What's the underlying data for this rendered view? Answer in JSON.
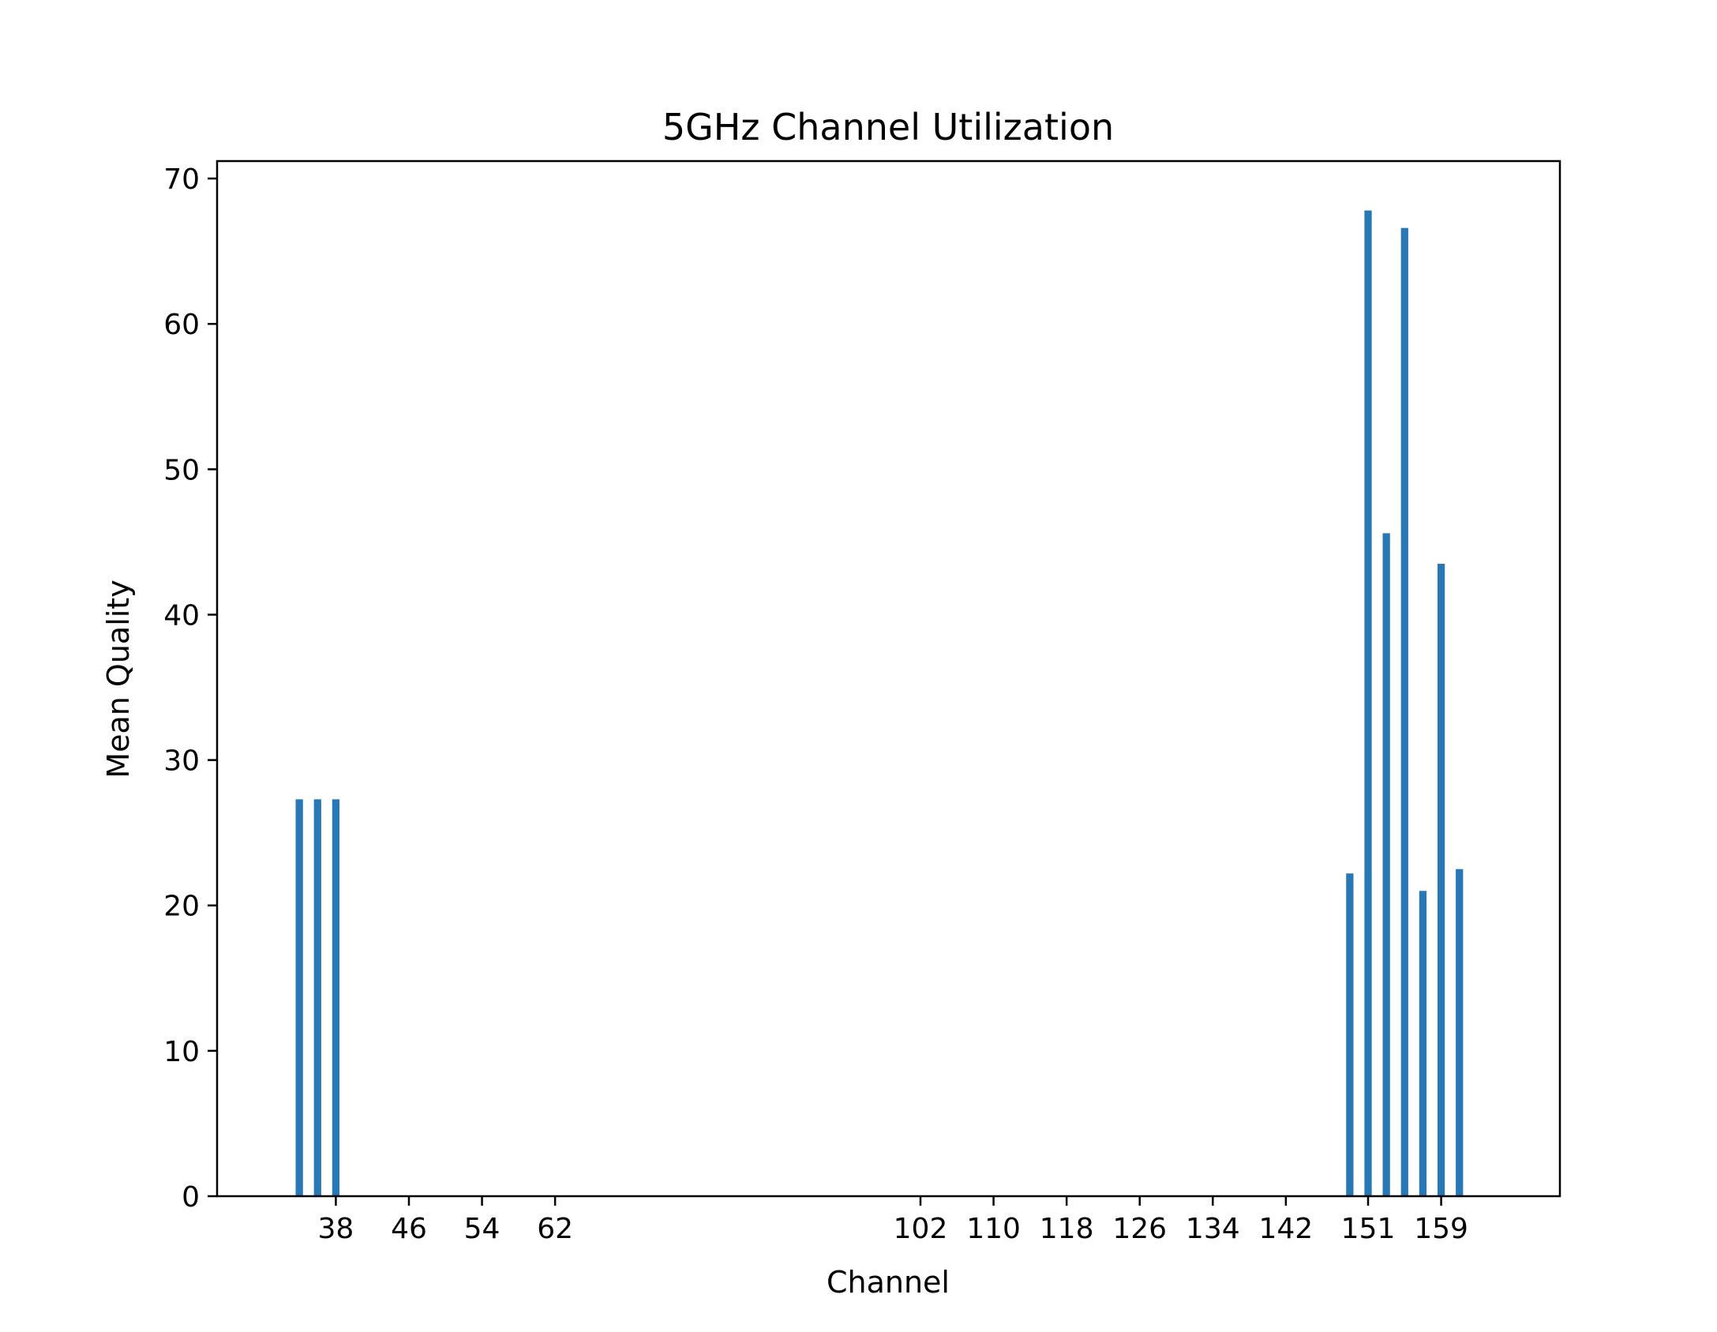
{
  "chart_data": {
    "type": "bar",
    "title": "5GHz Channel Utilization",
    "xlabel": "Channel",
    "ylabel": "Mean Quality",
    "xlim": [
      25,
      172
    ],
    "ylim": [
      0,
      71.2
    ],
    "xticks": [
      38,
      46,
      54,
      62,
      102,
      110,
      118,
      126,
      134,
      142,
      151,
      159
    ],
    "yticks": [
      0,
      10,
      20,
      30,
      40,
      50,
      60,
      70
    ],
    "bar_width": 0.8,
    "bar_color": "#2878b5",
    "grid": false,
    "legend": "none",
    "x": [
      34,
      36,
      38,
      149,
      151,
      153,
      155,
      157,
      159,
      161
    ],
    "values": [
      27.3,
      27.3,
      27.3,
      22.2,
      67.8,
      45.6,
      66.6,
      21.0,
      43.5,
      22.5
    ]
  }
}
